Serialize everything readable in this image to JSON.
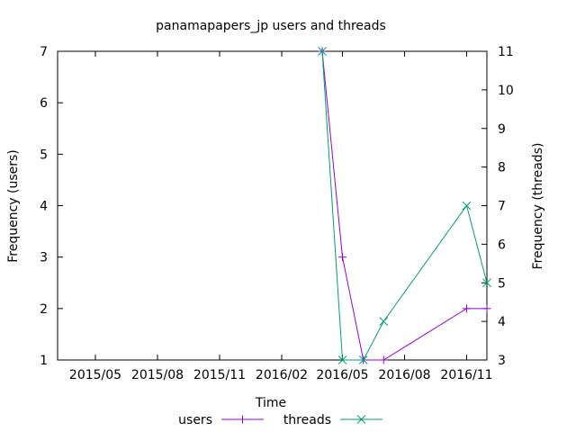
{
  "chart_data": {
    "type": "line",
    "title": "panamapapers_jp users and threads",
    "xlabel": "Time",
    "ylabel_left": "Frequency (users)",
    "ylabel_right": "Frequency (threads)",
    "x_ticks": [
      "2015/05",
      "2015/08",
      "2015/11",
      "2016/02",
      "2016/05",
      "2016/08",
      "2016/11"
    ],
    "y_left_ticks": [
      "1",
      "2",
      "3",
      "4",
      "5",
      "6",
      "7"
    ],
    "y_right_ticks": [
      "3",
      "4",
      "5",
      "6",
      "7",
      "8",
      "9",
      "10",
      "11"
    ],
    "y_left_range": [
      1,
      7
    ],
    "y_right_range": [
      3,
      11
    ],
    "x_range": [
      "2015-03-06",
      "2016-12-01"
    ],
    "grid": false,
    "legend_position": "bottom",
    "series": [
      {
        "name": "users",
        "axis": "left",
        "color": "#9400d3",
        "marker": "plus",
        "x": [
          "2016-04-01",
          "2016-05-01",
          "2016-06-01",
          "2016-07-01",
          "2016-11-01",
          "2016-12-01"
        ],
        "y": [
          7,
          3,
          1,
          1,
          2,
          2
        ]
      },
      {
        "name": "threads",
        "axis": "right",
        "color": "#009e73",
        "marker": "cross",
        "x": [
          "2016-04-01",
          "2016-05-01",
          "2016-06-01",
          "2016-07-01",
          "2016-11-01",
          "2016-12-01"
        ],
        "y": [
          11,
          3,
          3,
          4,
          7,
          5
        ]
      }
    ]
  }
}
